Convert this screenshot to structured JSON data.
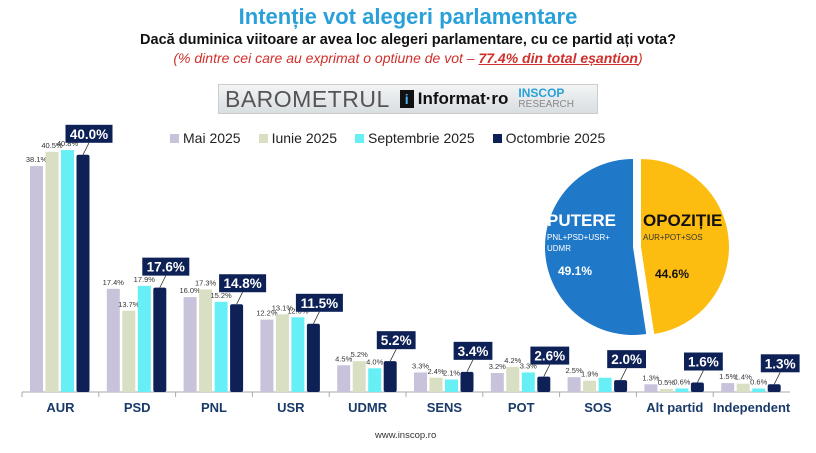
{
  "title": "Intenție vot alegeri parlamentare",
  "subtitle": "Dacă duminica viitoare ar avea loc alegeri parlamentare, cu ce partid ați vota?",
  "note_prefix": "(% dintre cei care au exprimat o optiune de vot – ",
  "note_bold": "77.4% din total eșantion",
  "note_suffix": ")",
  "banner": {
    "barometer": "BAROMETRUL",
    "informat": "Informat·ro",
    "informat_icon": "i",
    "inscop": "INSCOP",
    "research": "RESEARCH"
  },
  "footer": "www.inscop.ro",
  "chart_data": [
    {
      "type": "bar",
      "categories": [
        "AUR",
        "PSD",
        "PNL",
        "USR",
        "UDMR",
        "SENS",
        "POT",
        "SOS",
        "Alt partid",
        "Independent"
      ],
      "series": [
        {
          "name": "Mai 2025",
          "color": "#c8c2da",
          "values": [
            38.1,
            17.4,
            16.0,
            12.2,
            4.5,
            3.3,
            3.2,
            2.5,
            1.3,
            1.5
          ],
          "labels": [
            "38.1%",
            "17.4%",
            "16.0%",
            "12.2%",
            "4.5%",
            "3.3%",
            "3.2%",
            "2.5%",
            "1.3%",
            "1.5%"
          ]
        },
        {
          "name": "Iunie 2025",
          "color": "#d8dfc2",
          "values": [
            40.5,
            13.7,
            17.3,
            13.1,
            5.2,
            2.4,
            4.2,
            1.9,
            0.5,
            1.4
          ],
          "labels": [
            "40.5%",
            "13.7%",
            "17.3%",
            "13.1%",
            "5.2%",
            "2.4%",
            "4.2%",
            "1.9%",
            "0.5%",
            "1.4%"
          ]
        },
        {
          "name": "Septembrie 2025",
          "color": "#66f0f5",
          "values": [
            40.8,
            17.9,
            15.2,
            12.6,
            4.0,
            2.1,
            3.3,
            2.4,
            0.6,
            0.6
          ],
          "labels": [
            "40.8%",
            "17.9%",
            "15.2%",
            "12.6%",
            "4.0%",
            "2.1%",
            "3.3%",
            null,
            "0.6%",
            "0.6%"
          ]
        },
        {
          "name": "Octombrie 2025",
          "color": "#0d2157",
          "values": [
            40.0,
            17.6,
            14.8,
            11.5,
            5.2,
            3.4,
            2.6,
            2.0,
            1.6,
            1.3
          ],
          "labels": [
            "40.0%",
            "17.6%",
            "14.8%",
            "11.5%",
            "5.2%",
            "3.4%",
            "2.6%",
            "2.0%",
            "1.6%",
            "1.3%"
          ]
        }
      ],
      "ylim": [
        0,
        42
      ],
      "legend": "top"
    },
    {
      "type": "pie",
      "slices": [
        {
          "name": "PUTERE",
          "detail": "PNL+PSD+USR+ UDMR",
          "value": 49.1,
          "label": "49.1%",
          "color": "#1f78c8"
        },
        {
          "name": "OPOZIȚIE",
          "detail": "AUR+POT+SOS",
          "value": 44.6,
          "label": "44.6%",
          "color": "#fdbd10"
        }
      ]
    }
  ]
}
